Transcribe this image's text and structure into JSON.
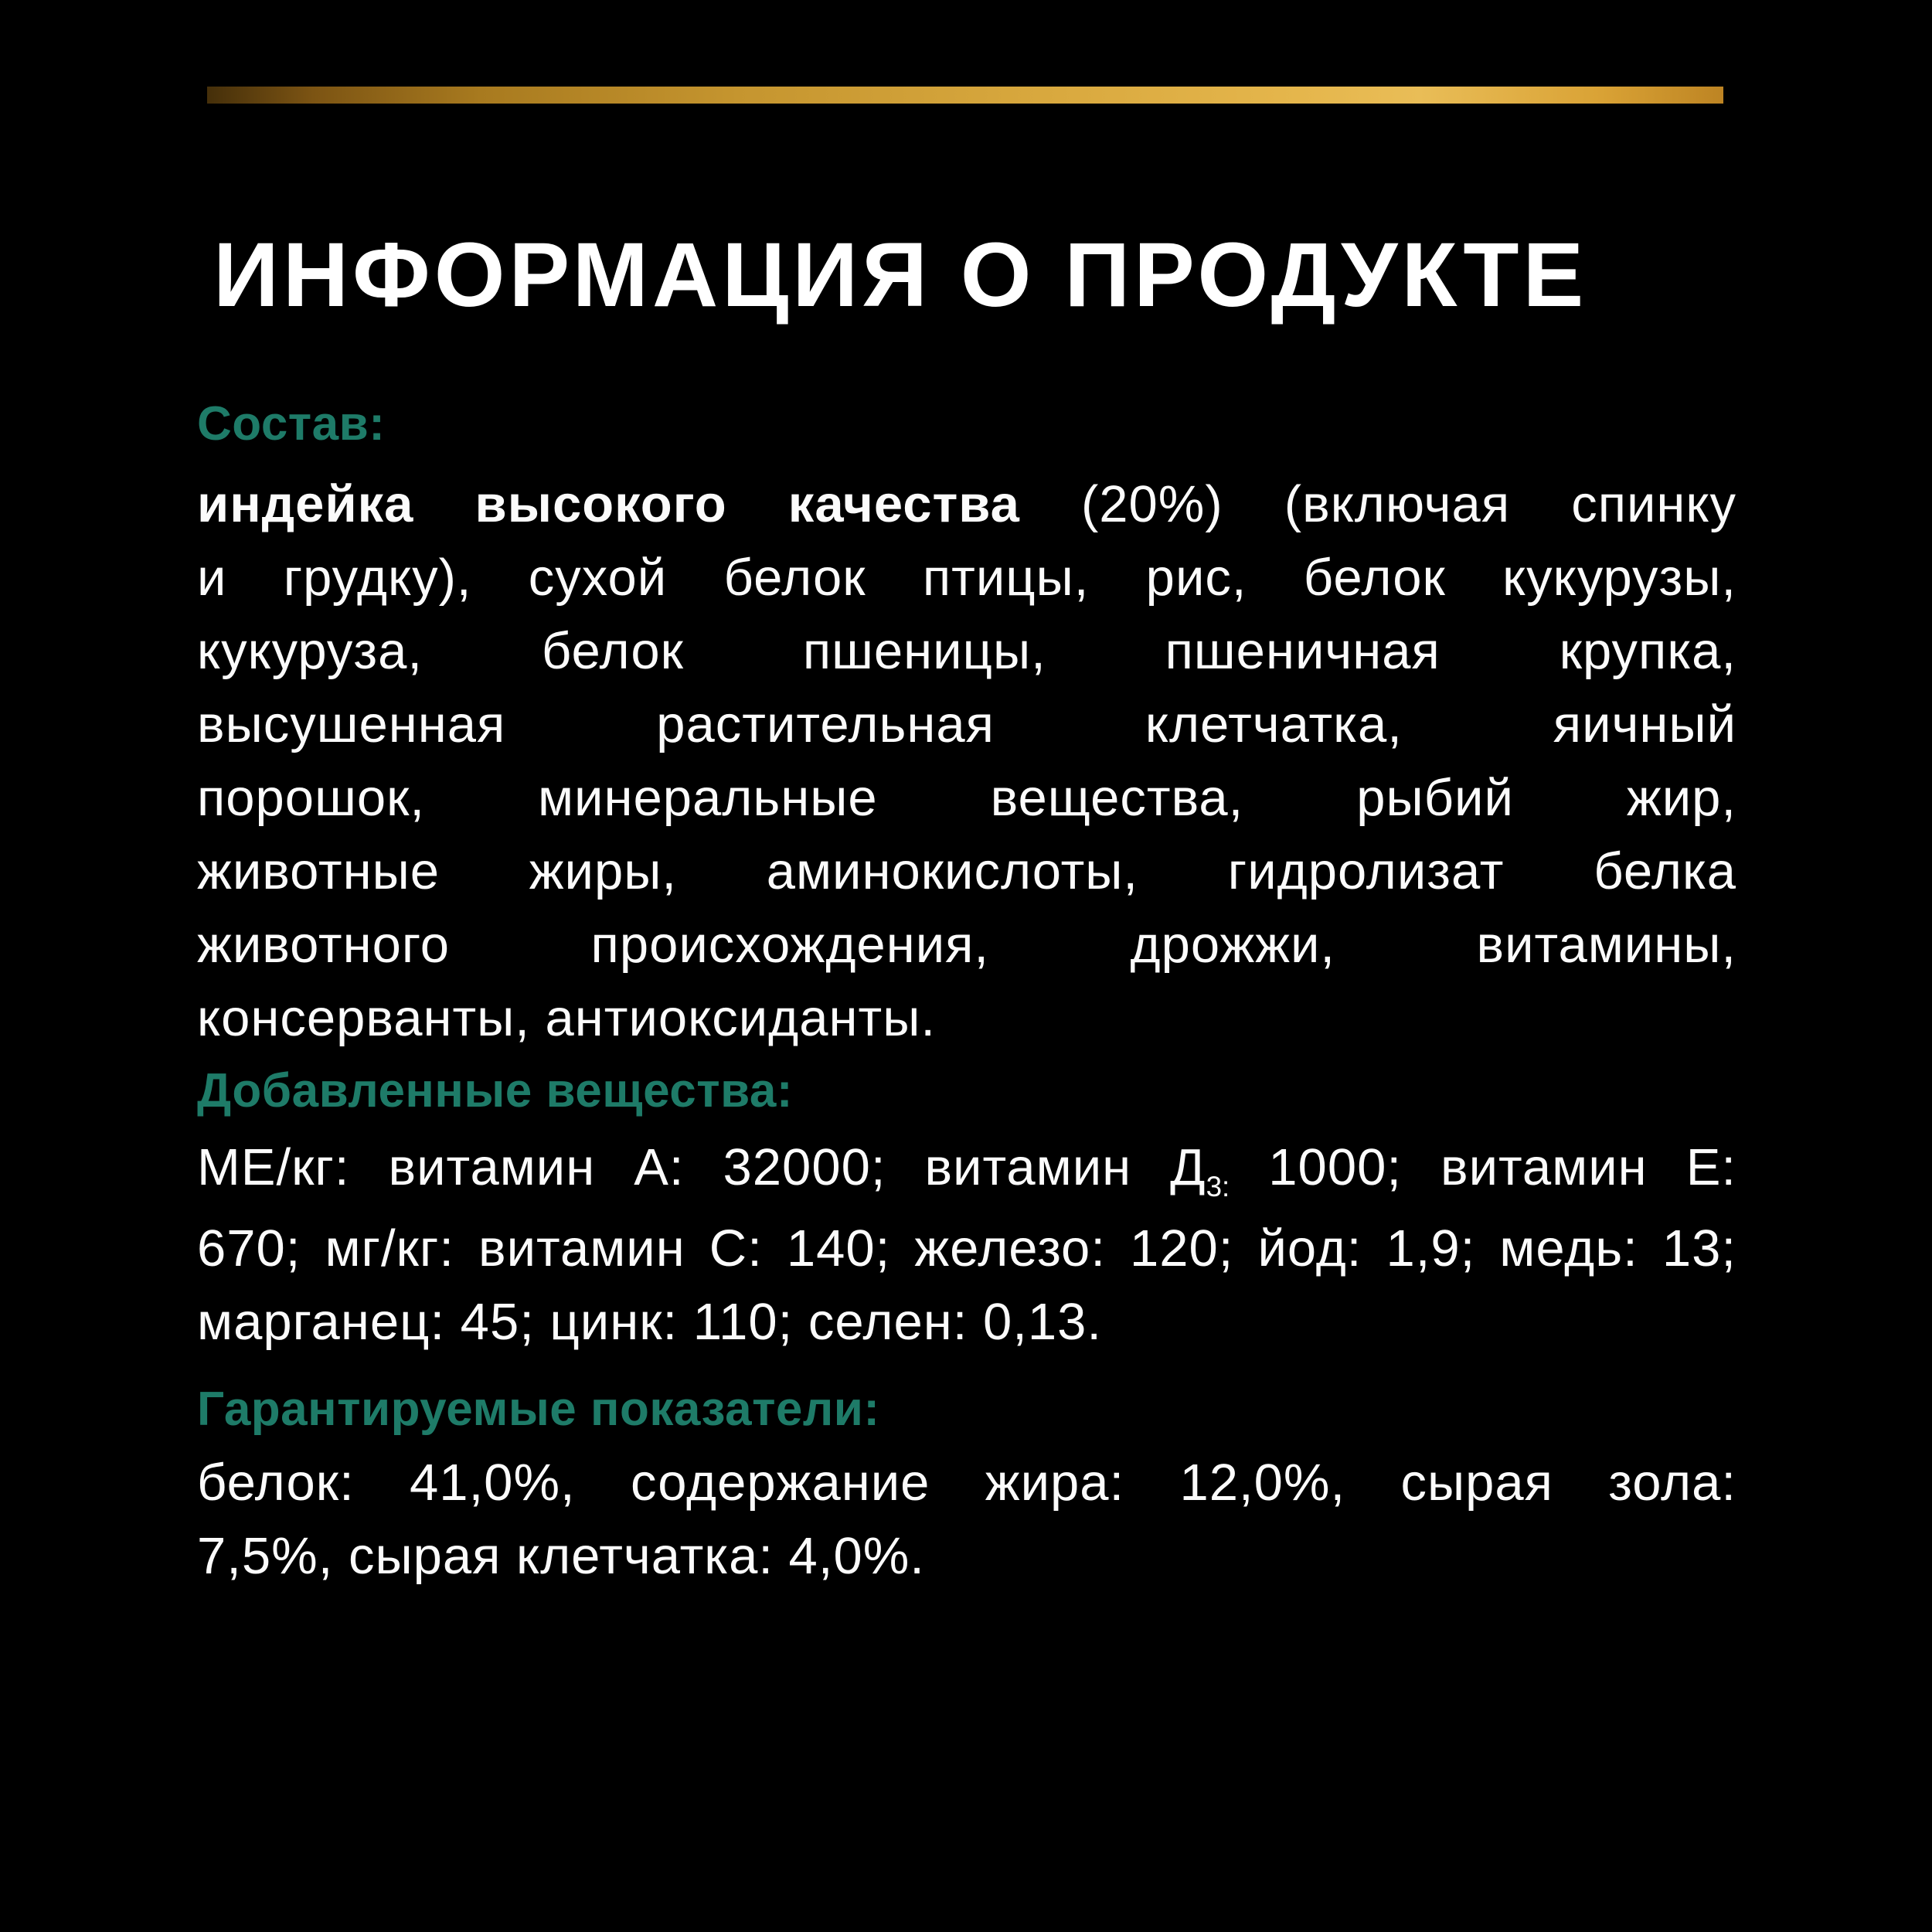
{
  "title": "ИНФОРМАЦИЯ О ПРОДУКТЕ",
  "colors": {
    "background": "#000000",
    "title_text": "#ffffff",
    "body_text": "#fbfbfb",
    "heading_teal": "#1e7b68",
    "gold_dark": "#452f0a",
    "gold_bright": "#e9bd57",
    "gold_end": "#bd8423"
  },
  "decor": {
    "top_bar": "gold-gradient-divider"
  },
  "sections": [
    {
      "id": "sec-composition",
      "name": "section-composition",
      "heading": "Состав:",
      "lines": [
        {
          "segments": [
            {
              "style": "bold",
              "text": "индейка высокого качества"
            },
            {
              "style": "normal",
              "text": " (20%) (включая спинку"
            }
          ]
        },
        {
          "segments": [
            {
              "style": "normal",
              "text": "и грудку), сухой белок птицы, рис, белок кукурузы,"
            }
          ]
        },
        {
          "segments": [
            {
              "style": "normal",
              "text": "кукуруза, белок пшеницы, пшеничная крупка,"
            }
          ]
        },
        {
          "segments": [
            {
              "style": "normal",
              "text": "высушенная растительная клетчатка, яичный"
            }
          ]
        },
        {
          "segments": [
            {
              "style": "normal",
              "text": "порошок, минеральные вещества, рыбий жир,"
            }
          ]
        },
        {
          "segments": [
            {
              "style": "normal",
              "text": "животные жиры, аминокислоты, гидролизат белка"
            }
          ]
        },
        {
          "segments": [
            {
              "style": "normal",
              "text": "животного происхождения, дрожжи, витамины,"
            }
          ]
        },
        {
          "last": true,
          "segments": [
            {
              "style": "normal",
              "text": "консерванты, антиоксиданты."
            }
          ]
        }
      ]
    },
    {
      "id": "sec-additives",
      "name": "section-additives",
      "heading": "Добавленные вещества:",
      "lines": [
        {
          "segments": [
            {
              "style": "normal",
              "text": "МЕ/кг: витамин А: 32000; витамин Д"
            },
            {
              "style": "sub",
              "text": "3:"
            },
            {
              "style": "normal",
              "text": " 1000; витамин Е:"
            }
          ]
        },
        {
          "segments": [
            {
              "style": "normal",
              "text": "670; мг/кг: витамин С: 140; железо: 120; йод: 1,9; медь: 13;"
            }
          ]
        },
        {
          "last": true,
          "segments": [
            {
              "style": "normal",
              "text": "марганец: 45; цинк: 110; селен: 0,13."
            }
          ]
        }
      ]
    },
    {
      "id": "sec-guaranteed",
      "name": "section-guaranteed-analysis",
      "heading": "Гарантируемые показатели:",
      "lines": [
        {
          "segments": [
            {
              "style": "normal",
              "text": "белок: 41,0%, содержание жира: 12,0%, сырая зола:"
            }
          ]
        },
        {
          "last": true,
          "segments": [
            {
              "style": "normal",
              "text": "7,5%, сырая клетчатка: 4,0%."
            }
          ]
        }
      ]
    }
  ]
}
